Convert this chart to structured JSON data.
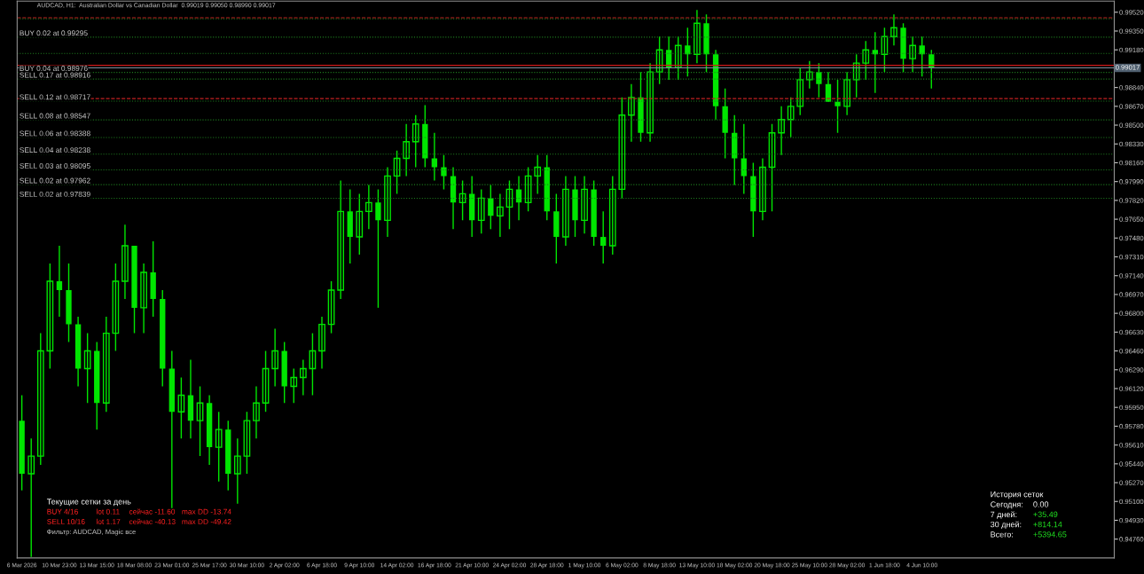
{
  "chart_data": {
    "type": "candlestick",
    "title": "AUDCAD, H1:  Australian Dollar vs Canadian Dollar  0.99019 0.99050 0.98990 0.99017",
    "categories": [
      "6 Mar 2026",
      null,
      null,
      null,
      "10 Mar 23:00",
      null,
      null,
      null,
      "13 Mar 15:00",
      null,
      null,
      null,
      "18 Mar 08:00",
      null,
      null,
      null,
      "23 Mar 01:00",
      null,
      null,
      null,
      "25 Mar 17:00",
      null,
      null,
      null,
      "30 Mar 10:00",
      null,
      null,
      null,
      "2 Apr 02:00",
      null,
      null,
      null,
      "6 Apr 18:00",
      null,
      null,
      null,
      "9 Apr 10:00",
      null,
      null,
      null,
      "14 Apr 02:00",
      null,
      null,
      null,
      "16 Apr 18:00",
      null,
      null,
      null,
      "21 Apr 10:00",
      null,
      null,
      null,
      "24 Apr 02:00",
      null,
      null,
      null,
      "28 Apr 18:00",
      null,
      null,
      null,
      "1 May 10:00",
      null,
      null,
      null,
      "6 May 02:00",
      null,
      null,
      null,
      "8 May 18:00",
      null,
      null,
      null,
      "13 May 10:00",
      null,
      null,
      null,
      "18 May 02:00",
      null,
      null,
      null,
      "20 May 18:00",
      null,
      null,
      null,
      "25 May 10:00",
      null,
      null,
      null,
      "28 May 02:00",
      null,
      null,
      null,
      "1 Jun 18:00",
      null,
      null,
      null,
      "4 Jun 10:00",
      null,
      null,
      null,
      null,
      null,
      null,
      null,
      null,
      null,
      null,
      null,
      null,
      null,
      null,
      null,
      null,
      null,
      null,
      null,
      null
    ],
    "ohlc": [
      [
        0.9583,
        0.9606,
        0.952,
        0.9535
      ],
      [
        0.9535,
        0.9567,
        0.946,
        0.9551
      ],
      [
        0.9551,
        0.9662,
        0.9543,
        0.9646
      ],
      [
        0.9646,
        0.9725,
        0.963,
        0.9709
      ],
      [
        0.9709,
        0.9741,
        0.9677,
        0.9701
      ],
      [
        0.9701,
        0.9725,
        0.9654,
        0.967
      ],
      [
        0.967,
        0.9677,
        0.9614,
        0.963
      ],
      [
        0.963,
        0.9662,
        0.9599,
        0.9646
      ],
      [
        0.9646,
        0.9654,
        0.9575,
        0.9599
      ],
      [
        0.9599,
        0.9677,
        0.9591,
        0.9662
      ],
      [
        0.9662,
        0.9725,
        0.9646,
        0.9709
      ],
      [
        0.9709,
        0.976,
        0.9693,
        0.9741
      ],
      [
        0.9741,
        0.9741,
        0.9662,
        0.9685
      ],
      [
        0.9685,
        0.9725,
        0.9662,
        0.9717
      ],
      [
        0.9717,
        0.9745,
        0.9677,
        0.9693
      ],
      [
        0.9693,
        0.9701,
        0.9614,
        0.963
      ],
      [
        0.963,
        0.9646,
        0.9504,
        0.9591
      ],
      [
        0.9591,
        0.9622,
        0.9567,
        0.9606
      ],
      [
        0.9606,
        0.9638,
        0.9567,
        0.9583
      ],
      [
        0.9583,
        0.9614,
        0.9551,
        0.9599
      ],
      [
        0.9599,
        0.9606,
        0.9543,
        0.9559
      ],
      [
        0.9559,
        0.9591,
        0.9528,
        0.9575
      ],
      [
        0.9575,
        0.9583,
        0.952,
        0.9535
      ],
      [
        0.9535,
        0.9567,
        0.9508,
        0.9551
      ],
      [
        0.9551,
        0.9591,
        0.9535,
        0.9583
      ],
      [
        0.9583,
        0.9614,
        0.9567,
        0.9599
      ],
      [
        0.9599,
        0.9646,
        0.9591,
        0.963
      ],
      [
        0.963,
        0.9666,
        0.9614,
        0.9646
      ],
      [
        0.9646,
        0.9654,
        0.9599,
        0.9614
      ],
      [
        0.9614,
        0.963,
        0.9599,
        0.9622
      ],
      [
        0.9622,
        0.9638,
        0.9606,
        0.963
      ],
      [
        0.963,
        0.9662,
        0.9606,
        0.9646
      ],
      [
        0.9646,
        0.9677,
        0.963,
        0.967
      ],
      [
        0.967,
        0.9709,
        0.9662,
        0.9701
      ],
      [
        0.9701,
        0.98,
        0.9693,
        0.9772
      ],
      [
        0.9772,
        0.9792,
        0.9725,
        0.9749
      ],
      [
        0.9749,
        0.9788,
        0.9733,
        0.9772
      ],
      [
        0.9772,
        0.9796,
        0.9756,
        0.978
      ],
      [
        0.978,
        0.9792,
        0.9685,
        0.9764
      ],
      [
        0.9764,
        0.9812,
        0.9749,
        0.9804
      ],
      [
        0.9804,
        0.9827,
        0.9788,
        0.982
      ],
      [
        0.982,
        0.9851,
        0.9804,
        0.9835
      ],
      [
        0.9835,
        0.9859,
        0.9812,
        0.9851
      ],
      [
        0.9851,
        0.9868,
        0.9812,
        0.982
      ],
      [
        0.982,
        0.9843,
        0.98,
        0.9812
      ],
      [
        0.9812,
        0.9823,
        0.9792,
        0.9804
      ],
      [
        0.9804,
        0.9812,
        0.9756,
        0.978
      ],
      [
        0.978,
        0.98,
        0.9764,
        0.9788
      ],
      [
        0.9788,
        0.9804,
        0.9749,
        0.9764
      ],
      [
        0.9764,
        0.9792,
        0.9752,
        0.9784
      ],
      [
        0.9784,
        0.9796,
        0.9756,
        0.9768
      ],
      [
        0.9768,
        0.9788,
        0.9749,
        0.9776
      ],
      [
        0.9776,
        0.98,
        0.9756,
        0.9792
      ],
      [
        0.9792,
        0.9804,
        0.9764,
        0.978
      ],
      [
        0.978,
        0.9812,
        0.9772,
        0.9804
      ],
      [
        0.9804,
        0.9823,
        0.9788,
        0.9812
      ],
      [
        0.9812,
        0.9823,
        0.9764,
        0.9772
      ],
      [
        0.9772,
        0.9788,
        0.9725,
        0.9749
      ],
      [
        0.9749,
        0.9804,
        0.9741,
        0.9792
      ],
      [
        0.9792,
        0.9804,
        0.9749,
        0.9764
      ],
      [
        0.9764,
        0.9804,
        0.9752,
        0.9792
      ],
      [
        0.9792,
        0.98,
        0.9741,
        0.9749
      ],
      [
        0.9749,
        0.9772,
        0.9725,
        0.9741
      ],
      [
        0.9741,
        0.9804,
        0.9733,
        0.9792
      ],
      [
        0.9792,
        0.9875,
        0.9784,
        0.9859
      ],
      [
        0.9859,
        0.9887,
        0.9835,
        0.9875
      ],
      [
        0.9875,
        0.9898,
        0.9835,
        0.9843
      ],
      [
        0.9843,
        0.9906,
        0.9835,
        0.9898
      ],
      [
        0.9898,
        0.993,
        0.9887,
        0.9918
      ],
      [
        0.9918,
        0.993,
        0.9891,
        0.9902
      ],
      [
        0.9902,
        0.993,
        0.9891,
        0.9922
      ],
      [
        0.9922,
        0.9938,
        0.9894,
        0.9914
      ],
      [
        0.9914,
        0.9954,
        0.9906,
        0.9942
      ],
      [
        0.9942,
        0.995,
        0.9898,
        0.9914
      ],
      [
        0.9914,
        0.9918,
        0.9855,
        0.9867
      ],
      [
        0.9867,
        0.9883,
        0.982,
        0.9843
      ],
      [
        0.9843,
        0.9859,
        0.9796,
        0.982
      ],
      [
        0.982,
        0.9851,
        0.9788,
        0.9804
      ],
      [
        0.9804,
        0.9816,
        0.9749,
        0.9772
      ],
      [
        0.9772,
        0.982,
        0.9764,
        0.9812
      ],
      [
        0.9812,
        0.9851,
        0.9772,
        0.9843
      ],
      [
        0.9843,
        0.9867,
        0.9823,
        0.9855
      ],
      [
        0.9855,
        0.9875,
        0.9839,
        0.9867
      ],
      [
        0.9867,
        0.9902,
        0.9859,
        0.9891
      ],
      [
        0.9891,
        0.9908,
        0.9883,
        0.9898
      ],
      [
        0.9898,
        0.9906,
        0.9875,
        0.9887
      ],
      [
        0.9887,
        0.9898,
        0.9871,
        0.9871
      ],
      [
        0.9871,
        0.9891,
        0.9843,
        0.9867
      ],
      [
        0.9867,
        0.9898,
        0.9859,
        0.9891
      ],
      [
        0.9891,
        0.9914,
        0.9875,
        0.9906
      ],
      [
        0.9906,
        0.9926,
        0.9891,
        0.9918
      ],
      [
        0.9918,
        0.9934,
        0.9879,
        0.9914
      ],
      [
        0.9914,
        0.9938,
        0.9898,
        0.993
      ],
      [
        0.993,
        0.995,
        0.9922,
        0.9938
      ],
      [
        0.9938,
        0.9942,
        0.9898,
        0.991
      ],
      [
        0.991,
        0.993,
        0.9898,
        0.9922
      ],
      [
        0.9922,
        0.993,
        0.9894,
        0.9914
      ],
      [
        0.9914,
        0.9918,
        0.9883,
        0.9902
      ],
      null,
      null,
      null,
      null,
      null,
      null,
      null,
      null,
      null,
      null,
      null,
      null,
      null,
      null,
      null,
      null,
      null,
      null,
      null
    ],
    "color": "#00e600",
    "ylim": [
      0.9459,
      0.9962
    ],
    "yticks": [
      {
        "value": 0.9476,
        "label": "0.94760"
      },
      {
        "value": 0.9493,
        "label": "0.94930"
      },
      {
        "value": 0.951,
        "label": "0.95100"
      },
      {
        "value": 0.9527,
        "label": "0.95270"
      },
      {
        "value": 0.9544,
        "label": "0.95440"
      },
      {
        "value": 0.9561,
        "label": "0.95610"
      },
      {
        "value": 0.9578,
        "label": "0.95780"
      },
      {
        "value": 0.9595,
        "label": "0.95950"
      },
      {
        "value": 0.9612,
        "label": "0.96120"
      },
      {
        "value": 0.9629,
        "label": "0.96290"
      },
      {
        "value": 0.9646,
        "label": "0.96460"
      },
      {
        "value": 0.9663,
        "label": "0.96630"
      },
      {
        "value": 0.968,
        "label": "0.96800"
      },
      {
        "value": 0.9697,
        "label": "0.96970"
      },
      {
        "value": 0.9714,
        "label": "0.97140"
      },
      {
        "value": 0.9731,
        "label": "0.97310"
      },
      {
        "value": 0.9748,
        "label": "0.97480"
      },
      {
        "value": 0.9765,
        "label": "0.97650"
      },
      {
        "value": 0.9782,
        "label": "0.97820"
      },
      {
        "value": 0.9799,
        "label": "0.97990"
      },
      {
        "value": 0.9816,
        "label": "0.98160"
      },
      {
        "value": 0.9833,
        "label": "0.98330"
      },
      {
        "value": 0.985,
        "label": "0.98500"
      },
      {
        "value": 0.9867,
        "label": "0.98670"
      },
      {
        "value": 0.9884,
        "label": "0.98840"
      },
      {
        "value": 0.9918,
        "label": "0.99180"
      },
      {
        "value": 0.9935,
        "label": "0.99350"
      },
      {
        "value": 0.9952,
        "label": "0.99520"
      }
    ],
    "ref_lines": [
      {
        "axis": "y",
        "value": 0.9947,
        "color": "#c02020",
        "line_style": "dashed"
      },
      {
        "axis": "y",
        "value": 0.9946,
        "color": "#1e7a1e",
        "line_style": "dotted"
      },
      {
        "axis": "y",
        "value": 0.99295,
        "label": "BUY 0.02 at 0.99295",
        "color": "#1e7a1e",
        "line_style": "dotted"
      },
      {
        "axis": "y",
        "value": 0.99148,
        "color": "#1e7a1e",
        "line_style": "dotted"
      },
      {
        "axis": "y",
        "value": 0.9904,
        "color": "#d01818",
        "line_style": "solid"
      },
      {
        "axis": "y",
        "value": 0.99017,
        "label": "0.99017",
        "color": "#8090a0",
        "line_style": "solid"
      },
      {
        "axis": "y",
        "value": 0.98976,
        "label": "BUY 0.04 at 0.98976",
        "color": "#1e7a1e",
        "line_style": "dotted"
      },
      {
        "axis": "y",
        "value": 0.98916,
        "label": "SELL 0.17 at 0.98916",
        "color": "#1e7a1e",
        "line_style": "dotted"
      },
      {
        "axis": "y",
        "value": 0.9874,
        "color": "#c02020",
        "line_style": "dashed"
      },
      {
        "axis": "y",
        "value": 0.98717,
        "label": "SELL 0.12 at 0.98717",
        "color": "#1e7a1e",
        "line_style": "dotted"
      },
      {
        "axis": "y",
        "value": 0.98547,
        "label": "SELL 0.08 at 0.98547",
        "color": "#1e7a1e",
        "line_style": "dotted"
      },
      {
        "axis": "y",
        "value": 0.98388,
        "label": "SELL 0.06 at 0.98388",
        "color": "#1e7a1e",
        "line_style": "dotted"
      },
      {
        "axis": "y",
        "value": 0.98238,
        "label": "SELL 0.04 at 0.98238",
        "color": "#1e7a1e",
        "line_style": "dotted"
      },
      {
        "axis": "y",
        "value": 0.98095,
        "label": "SELL 0.03 at 0.98095",
        "color": "#1e7a1e",
        "line_style": "dotted"
      },
      {
        "axis": "y",
        "value": 0.97962,
        "label": "SELL 0.02 at 0.97962",
        "color": "#1e7a1e",
        "line_style": "dotted"
      },
      {
        "axis": "y",
        "value": 0.97839,
        "label": "SELL 0.02 at 0.97839",
        "color": "#1e7a1e",
        "line_style": "dotted"
      }
    ],
    "annotations": [
      "Текущие сетки за день",
      "BUY 4/16",
      "lot 0.11",
      "сейчас -11.60",
      "max DD -13.74",
      "SELL 10/16",
      "lot 1.17",
      "сейчас -40.13",
      "max DD -49.42",
      "Фильтр: AUDCAD, Magic все",
      "История сеток",
      "Сегодня:",
      "0.00",
      "7 дней:",
      "+35.49",
      "30 дней:",
      "+814.14",
      "Всего:",
      "+5394.65"
    ],
    "grid": false,
    "legend": false
  }
}
